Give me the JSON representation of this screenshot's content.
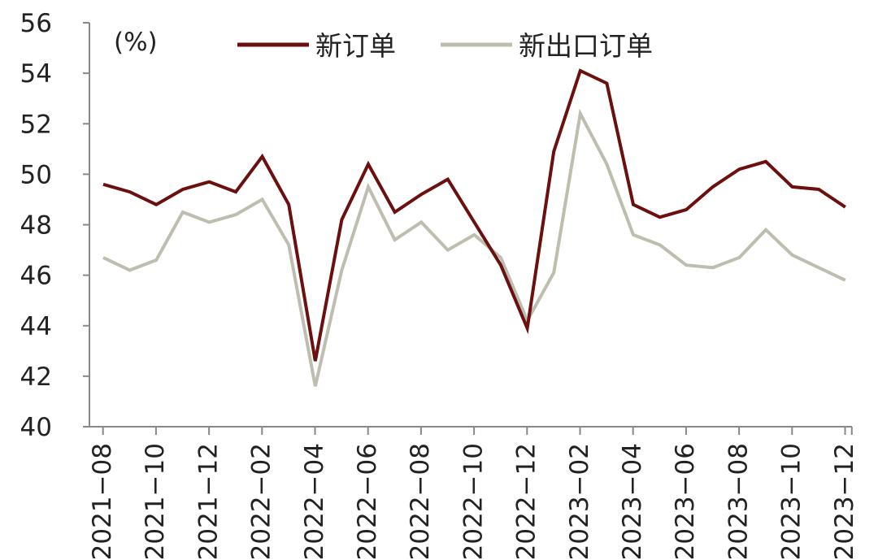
{
  "chart_data": {
    "type": "line",
    "title": "",
    "unit_label": "(%)",
    "xlabel": "",
    "ylabel": "",
    "ylim": [
      40,
      56
    ],
    "yticks": [
      40,
      42,
      44,
      46,
      48,
      50,
      52,
      54,
      56
    ],
    "grid": false,
    "legend": "top",
    "x": [
      "2021-08",
      "2021-09",
      "2021-10",
      "2021-11",
      "2021-12",
      "2022-01",
      "2022-02",
      "2022-03",
      "2022-04",
      "2022-05",
      "2022-06",
      "2022-07",
      "2022-08",
      "2022-09",
      "2022-10",
      "2022-11",
      "2022-12",
      "2023-01",
      "2023-02",
      "2023-03",
      "2023-04",
      "2023-05",
      "2023-06",
      "2023-07",
      "2023-08",
      "2023-09",
      "2023-10",
      "2023-11",
      "2023-12"
    ],
    "xtick_labels": [
      "2021−08",
      "2021−10",
      "2021−12",
      "2022−02",
      "2022−04",
      "2022−06",
      "2022−08",
      "2022−10",
      "2022−12",
      "2023−02",
      "2023−04",
      "2023−06",
      "2023−08",
      "2023−10",
      "2023−12"
    ],
    "series": [
      {
        "name": "新订单",
        "color": "#6b0f0f",
        "values": [
          49.6,
          49.3,
          48.8,
          49.4,
          49.7,
          49.3,
          50.7,
          48.8,
          42.6,
          48.2,
          50.4,
          48.5,
          49.2,
          49.8,
          48.1,
          46.4,
          43.9,
          50.9,
          54.1,
          53.6,
          48.8,
          48.3,
          48.6,
          49.5,
          50.2,
          50.5,
          49.5,
          49.4,
          48.7
        ]
      },
      {
        "name": "新出口订单",
        "color": "#bfbdaf",
        "values": [
          46.7,
          46.2,
          46.6,
          48.5,
          48.1,
          48.4,
          49.0,
          47.2,
          41.6,
          46.2,
          49.5,
          47.4,
          48.1,
          47.0,
          47.6,
          46.7,
          44.2,
          46.1,
          52.4,
          50.4,
          47.6,
          47.2,
          46.4,
          46.3,
          46.7,
          47.8,
          46.8,
          46.3,
          45.8
        ]
      }
    ]
  }
}
